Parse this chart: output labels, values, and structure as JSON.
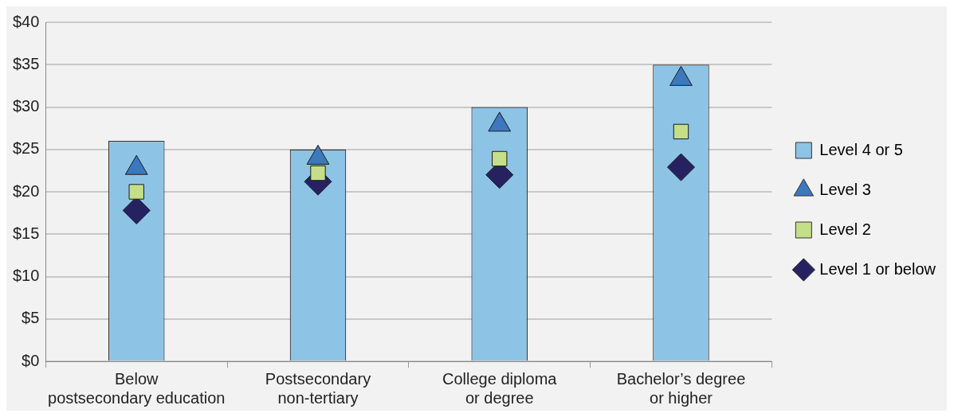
{
  "chart_data": {
    "type": "bar",
    "categories": [
      "Below\npostsecondary education",
      "Postsecondary\nnon-tertiary",
      "College diploma\nor degree",
      "Bachelor’s degree\nor higher"
    ],
    "series": [
      {
        "name": "Level 4 or 5",
        "color": "#8dc4e6",
        "values": [
          26,
          25,
          30,
          35
        ]
      },
      {
        "name": "Level 3",
        "type": "scatter",
        "marker": "triangle",
        "color": "#3d78bd",
        "values": [
          22.8,
          24.0,
          27.9,
          33.3
        ]
      },
      {
        "name": "Level 2",
        "type": "scatter",
        "marker": "square",
        "color": "#c5de88",
        "values": [
          20.0,
          22.2,
          23.9,
          27.1
        ]
      },
      {
        "name": "Level 1 or below",
        "type": "scatter",
        "marker": "diamond",
        "color": "#262262",
        "values": [
          17.8,
          21.2,
          22.0,
          22.9
        ]
      }
    ],
    "ylim": [
      0,
      40
    ],
    "yticks": [
      {
        "value": 0,
        "label": "$0"
      },
      {
        "value": 5,
        "label": "$5"
      },
      {
        "value": 10,
        "label": "$10"
      },
      {
        "value": 15,
        "label": "$15"
      },
      {
        "value": 20,
        "label": "$20"
      },
      {
        "value": 25,
        "label": "$25"
      },
      {
        "value": 30,
        "label": "$30"
      },
      {
        "value": 35,
        "label": "$35"
      },
      {
        "value": 40,
        "label": "$40"
      }
    ],
    "grid": "y",
    "legend": "right"
  }
}
